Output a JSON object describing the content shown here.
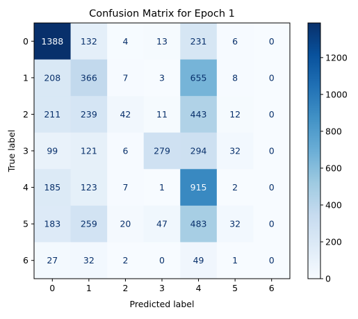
{
  "chart_data": {
    "type": "heatmap",
    "title": "Confusion Matrix for Epoch 1",
    "xlabel": "Predicted label",
    "ylabel": "True label",
    "x_tick_labels": [
      "0",
      "1",
      "2",
      "3",
      "4",
      "5",
      "6"
    ],
    "y_tick_labels": [
      "0",
      "1",
      "2",
      "3",
      "4",
      "5",
      "6"
    ],
    "matrix": [
      [
        1388,
        132,
        4,
        13,
        231,
        6,
        0
      ],
      [
        208,
        366,
        7,
        3,
        655,
        8,
        0
      ],
      [
        211,
        239,
        42,
        11,
        443,
        12,
        0
      ],
      [
        99,
        121,
        6,
        279,
        294,
        32,
        0
      ],
      [
        185,
        123,
        7,
        1,
        915,
        2,
        0
      ],
      [
        183,
        259,
        20,
        47,
        483,
        32,
        0
      ],
      [
        27,
        32,
        2,
        0,
        49,
        1,
        0
      ]
    ],
    "colormap": "Blues",
    "colorbar": {
      "range": [
        0,
        1388
      ],
      "ticks": [
        0,
        200,
        400,
        600,
        800,
        1000,
        1200
      ]
    },
    "grid": false
  }
}
